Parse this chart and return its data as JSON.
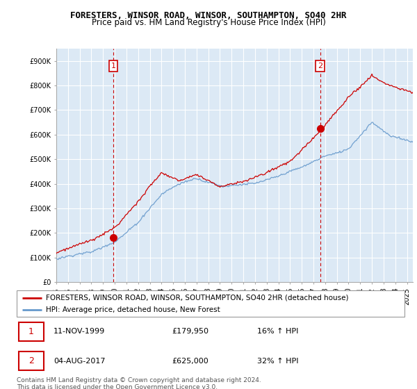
{
  "title": "FORESTERS, WINSOR ROAD, WINSOR, SOUTHAMPTON, SO40 2HR",
  "subtitle": "Price paid vs. HM Land Registry's House Price Index (HPI)",
  "ylim": [
    0,
    950000
  ],
  "yticks": [
    0,
    100000,
    200000,
    300000,
    400000,
    500000,
    600000,
    700000,
    800000,
    900000
  ],
  "ytick_labels": [
    "£0",
    "£100K",
    "£200K",
    "£300K",
    "£400K",
    "£500K",
    "£600K",
    "£700K",
    "£800K",
    "£900K"
  ],
  "xlim_start": 1995.0,
  "xlim_end": 2025.5,
  "background_color": "#ffffff",
  "chart_bg_color": "#dce9f5",
  "grid_color": "#ffffff",
  "red_color": "#cc0000",
  "blue_color": "#6699cc",
  "point1_x": 1999.87,
  "point1_y": 179950,
  "point1_label": "1",
  "point2_x": 2017.58,
  "point2_y": 625000,
  "point2_label": "2",
  "legend_line1": "FORESTERS, WINSOR ROAD, WINSOR, SOUTHAMPTON, SO40 2HR (detached house)",
  "legend_line2": "HPI: Average price, detached house, New Forest",
  "ann1_date": "11-NOV-1999",
  "ann1_price": "£179,950",
  "ann1_hpi": "16% ↑ HPI",
  "ann2_date": "04-AUG-2017",
  "ann2_price": "£625,000",
  "ann2_hpi": "32% ↑ HPI",
  "footer": "Contains HM Land Registry data © Crown copyright and database right 2024.\nThis data is licensed under the Open Government Licence v3.0.",
  "title_fontsize": 9,
  "subtitle_fontsize": 8.5,
  "tick_fontsize": 7,
  "legend_fontsize": 7.5
}
